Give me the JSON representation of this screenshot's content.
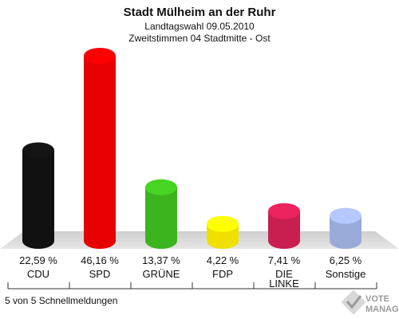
{
  "chart_data": {
    "type": "bar",
    "title": "Stadt Mülheim an der Ruhr",
    "subtitle_line1": "Landtagswahl 09.05.2010",
    "subtitle_line2": "Zweitstimmen 04 Stadtmitte - Ost",
    "categories": [
      "CDU",
      "SPD",
      "GRÜNE",
      "FDP",
      "DIE LINKE",
      "Sonstige"
    ],
    "values": [
      22.59,
      46.16,
      13.37,
      4.22,
      7.41,
      6.25
    ],
    "value_labels": [
      "22,59 %",
      "46,16 %",
      "13,37 %",
      "4,22 %",
      "7,41 %",
      "6,25 %"
    ],
    "colors": [
      "#111111",
      "#e60000",
      "#3cb41e",
      "#f0e000",
      "#c81e50",
      "#9aaad8"
    ],
    "grid": false,
    "legend": "none"
  },
  "footer": {
    "note": "5 von 5 Schnellmeldungen"
  },
  "logo": {
    "line1": "VOTE",
    "line2": "MANAGER",
    "icon": "checkmark-icon"
  }
}
